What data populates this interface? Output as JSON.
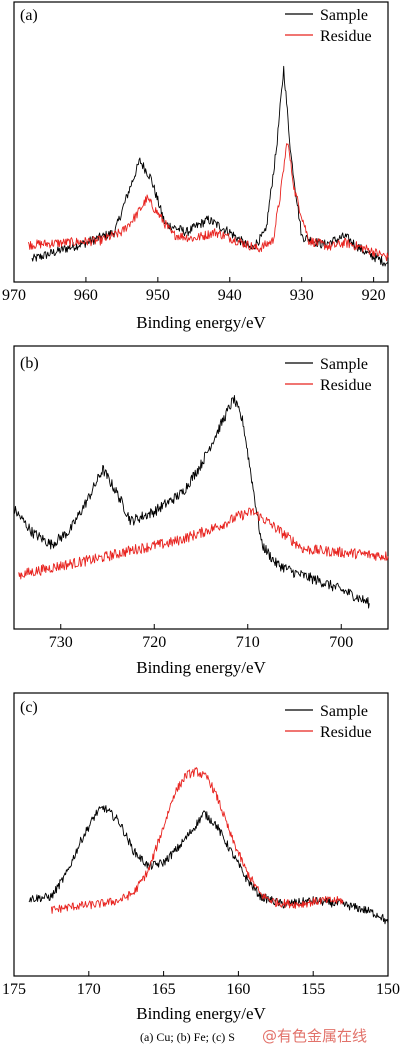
{
  "caption": "(a) Cu; (b) Fe; (c) S",
  "watermark": "@有色金属在线",
  "colors": {
    "sample": "#000000",
    "residue": "#e8231f"
  },
  "chart_data": [
    {
      "id": "a",
      "type": "line",
      "panel_label": "(a)",
      "xlabel": "Binding energy/eV",
      "ylabel": "",
      "xlim": [
        970,
        918
      ],
      "xticks": [
        970,
        960,
        950,
        940,
        930,
        920
      ],
      "ylim": [
        0,
        100
      ],
      "legend": "top-right",
      "series": [
        {
          "name": "Sample",
          "color": "#000000",
          "x": [
            967.5,
            963,
            960,
            956,
            954,
            952.5,
            951,
            949,
            946,
            943,
            940,
            937,
            935,
            933.5,
            932.5,
            931.5,
            930,
            927,
            924,
            921,
            918
          ],
          "y": [
            5,
            10,
            13,
            18,
            38,
            52,
            44,
            22,
            18,
            24,
            18,
            10,
            18,
            58,
            96,
            55,
            16,
            12,
            16,
            8,
            3
          ]
        },
        {
          "name": "Residue",
          "color": "#e8231f",
          "x": [
            968,
            963,
            958,
            955,
            953,
            951.5,
            950,
            948,
            945,
            942,
            939,
            936,
            934,
            933,
            932,
            931,
            929,
            926,
            924,
            921,
            918
          ],
          "y": [
            12,
            13,
            14,
            18,
            26,
            34,
            27,
            17,
            15,
            18,
            14,
            10,
            14,
            35,
            62,
            38,
            14,
            11,
            13,
            10,
            6
          ]
        }
      ]
    },
    {
      "id": "b",
      "type": "line",
      "panel_label": "(b)",
      "xlabel": "Binding energy/eV",
      "ylabel": "",
      "xlim": [
        735,
        695
      ],
      "xticks": [
        730,
        720,
        710,
        700
      ],
      "ylim": [
        0,
        100
      ],
      "legend": "top-right",
      "series": [
        {
          "name": "Sample",
          "color": "#000000",
          "x": [
            735,
            733,
            731,
            729,
            727,
            725.5,
            724,
            722.5,
            720,
            717,
            715,
            713,
            711.5,
            710.5,
            709.5,
            708.5,
            707,
            705,
            702,
            699,
            697
          ],
          "y": [
            45,
            35,
            30,
            36,
            50,
            62,
            52,
            40,
            44,
            52,
            64,
            80,
            92,
            82,
            56,
            30,
            22,
            18,
            14,
            9,
            5
          ]
        },
        {
          "name": "Residue",
          "color": "#e8231f",
          "x": [
            734.5,
            730,
            726,
            722,
            718,
            715,
            713,
            711,
            709.5,
            708,
            706,
            704,
            701,
            698,
            695
          ],
          "y": [
            17,
            21,
            24,
            28,
            31,
            35,
            38,
            42,
            44,
            40,
            34,
            28,
            27,
            26,
            25
          ]
        }
      ]
    },
    {
      "id": "c",
      "type": "line",
      "panel_label": "(c)",
      "xlabel": "Binding energy/eV",
      "ylabel": "",
      "xlim": [
        175,
        150
      ],
      "xticks": [
        175,
        170,
        165,
        160,
        155,
        150
      ],
      "ylim": [
        0,
        100
      ],
      "legend": "top-right",
      "series": [
        {
          "name": "Sample",
          "color": "#000000",
          "x": [
            174,
            172.5,
            171.5,
            170.5,
            169.5,
            169,
            168,
            167,
            166,
            165,
            164,
            163,
            162.3,
            161.5,
            160.5,
            159.5,
            158.5,
            157,
            155,
            153,
            151.5,
            150.5,
            150
          ],
          "y": [
            27,
            28,
            40,
            58,
            72,
            75,
            68,
            52,
            44,
            46,
            54,
            64,
            72,
            66,
            52,
            38,
            28,
            24,
            26,
            24,
            21,
            18,
            14
          ]
        },
        {
          "name": "Residue",
          "color": "#e8231f",
          "x": [
            172.5,
            171,
            169.5,
            168,
            167,
            166,
            165,
            164.3,
            163.5,
            162.8,
            162,
            161.3,
            160.5,
            159.5,
            158.5,
            157.5,
            156,
            154.5,
            153
          ],
          "y": [
            21,
            23,
            24,
            26,
            30,
            42,
            65,
            82,
            92,
            94,
            90,
            78,
            60,
            42,
            29,
            25,
            24,
            26,
            26
          ]
        }
      ]
    }
  ]
}
